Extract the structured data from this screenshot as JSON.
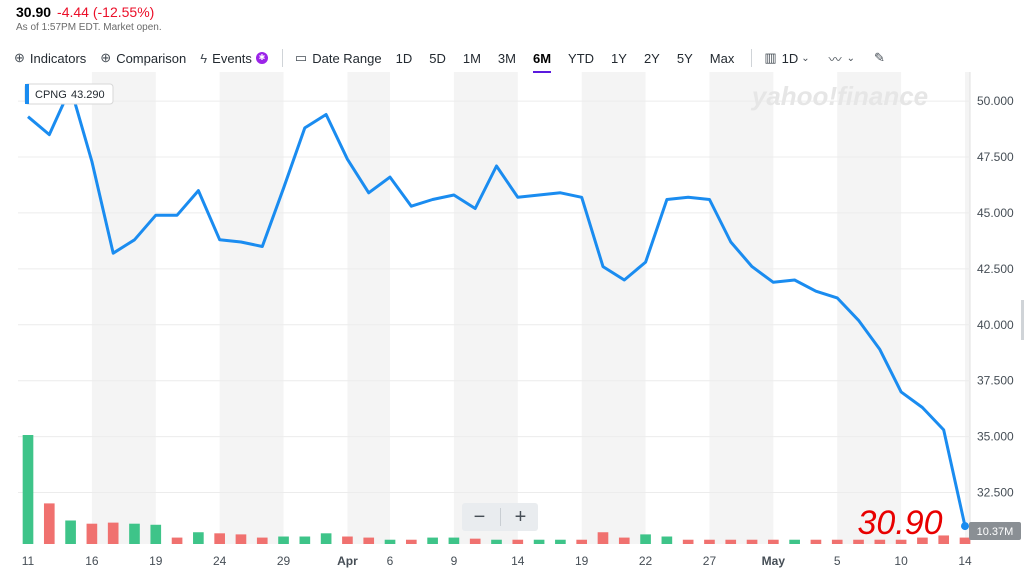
{
  "quote": {
    "price": "30.90",
    "change": "-4.44 (-12.55%)",
    "as_of": "As of 1:57PM EDT. Market open."
  },
  "toolbar": {
    "indicators": "Indicators",
    "comparison": "Comparison",
    "events": "Events",
    "date_range": "Date Range",
    "ranges": [
      "1D",
      "5D",
      "1M",
      "3M",
      "6M",
      "YTD",
      "1Y",
      "2Y",
      "5Y",
      "Max"
    ],
    "active_range": "6M",
    "interval": "1D"
  },
  "watermark": "yahoo!finance",
  "tooltip": {
    "symbol": "CPNG",
    "value": "43.290"
  },
  "big_price": "30.90",
  "volume_label": "10.37M",
  "zoom": {
    "minus": "−",
    "plus": "+"
  },
  "colors": {
    "line": "#1a8cf0",
    "vol_up": "#3ec489",
    "vol_down": "#f0716f",
    "price_label": "#e80000",
    "shade": "#f4f4f4"
  },
  "chart_data": {
    "type": "line",
    "ylim": [
      30.2,
      51.3
    ],
    "yticks": [
      "50.000",
      "47.500",
      "45.000",
      "42.500",
      "40.000",
      "37.500",
      "35.000",
      "32.500"
    ],
    "ytick_values": [
      50,
      47.5,
      45,
      42.5,
      40,
      37.5,
      35,
      32.5
    ],
    "xticks": [
      {
        "i": 0,
        "label": "11"
      },
      {
        "i": 3,
        "label": "16"
      },
      {
        "i": 6,
        "label": "19"
      },
      {
        "i": 9,
        "label": "24"
      },
      {
        "i": 12,
        "label": "29"
      },
      {
        "i": 15,
        "label": "Apr"
      },
      {
        "i": 17,
        "label": "6"
      },
      {
        "i": 20,
        "label": "9"
      },
      {
        "i": 23,
        "label": "14"
      },
      {
        "i": 26,
        "label": "19"
      },
      {
        "i": 29,
        "label": "22"
      },
      {
        "i": 32,
        "label": "27"
      },
      {
        "i": 35,
        "label": "May"
      },
      {
        "i": 38,
        "label": "5"
      },
      {
        "i": 41,
        "label": "10"
      },
      {
        "i": 44,
        "label": "14"
      }
    ],
    "series": [
      {
        "values": [
          49.3,
          48.5,
          50.6,
          47.3,
          43.2,
          43.8,
          44.9,
          44.9,
          46.0,
          43.8,
          43.7,
          43.5,
          46.1,
          48.8,
          49.4,
          47.4,
          45.9,
          46.6,
          45.3,
          45.6,
          45.8,
          45.2,
          47.1,
          45.7,
          45.8,
          45.9,
          45.7,
          42.6,
          42.0,
          42.8,
          45.6,
          45.7,
          45.6,
          43.7,
          42.6,
          41.9,
          42.0,
          41.5,
          41.2,
          40.2,
          38.9,
          37.0,
          36.3,
          35.3,
          31.0
        ]
      }
    ],
    "volume": {
      "values": [
        5.1,
        1.9,
        1.1,
        0.95,
        1.0,
        0.95,
        0.9,
        0.3,
        0.55,
        0.5,
        0.45,
        0.3,
        0.35,
        0.35,
        0.5,
        0.35,
        0.3,
        0.2,
        0.2,
        0.3,
        0.3,
        0.25,
        0.2,
        0.2,
        0.2,
        0.2,
        0.2,
        0.55,
        0.3,
        0.45,
        0.35,
        0.2,
        0.2,
        0.2,
        0.2,
        0.2,
        0.2,
        0.2,
        0.2,
        0.2,
        0.2,
        0.2,
        0.3,
        0.4,
        0.3
      ],
      "up": [
        true,
        false,
        true,
        false,
        false,
        true,
        true,
        false,
        true,
        false,
        false,
        false,
        true,
        true,
        true,
        false,
        false,
        true,
        false,
        true,
        true,
        false,
        true,
        false,
        true,
        true,
        false,
        false,
        false,
        true,
        true,
        false,
        false,
        false,
        false,
        false,
        true,
        false,
        false,
        false,
        false,
        false,
        false,
        false,
        false
      ]
    }
  }
}
